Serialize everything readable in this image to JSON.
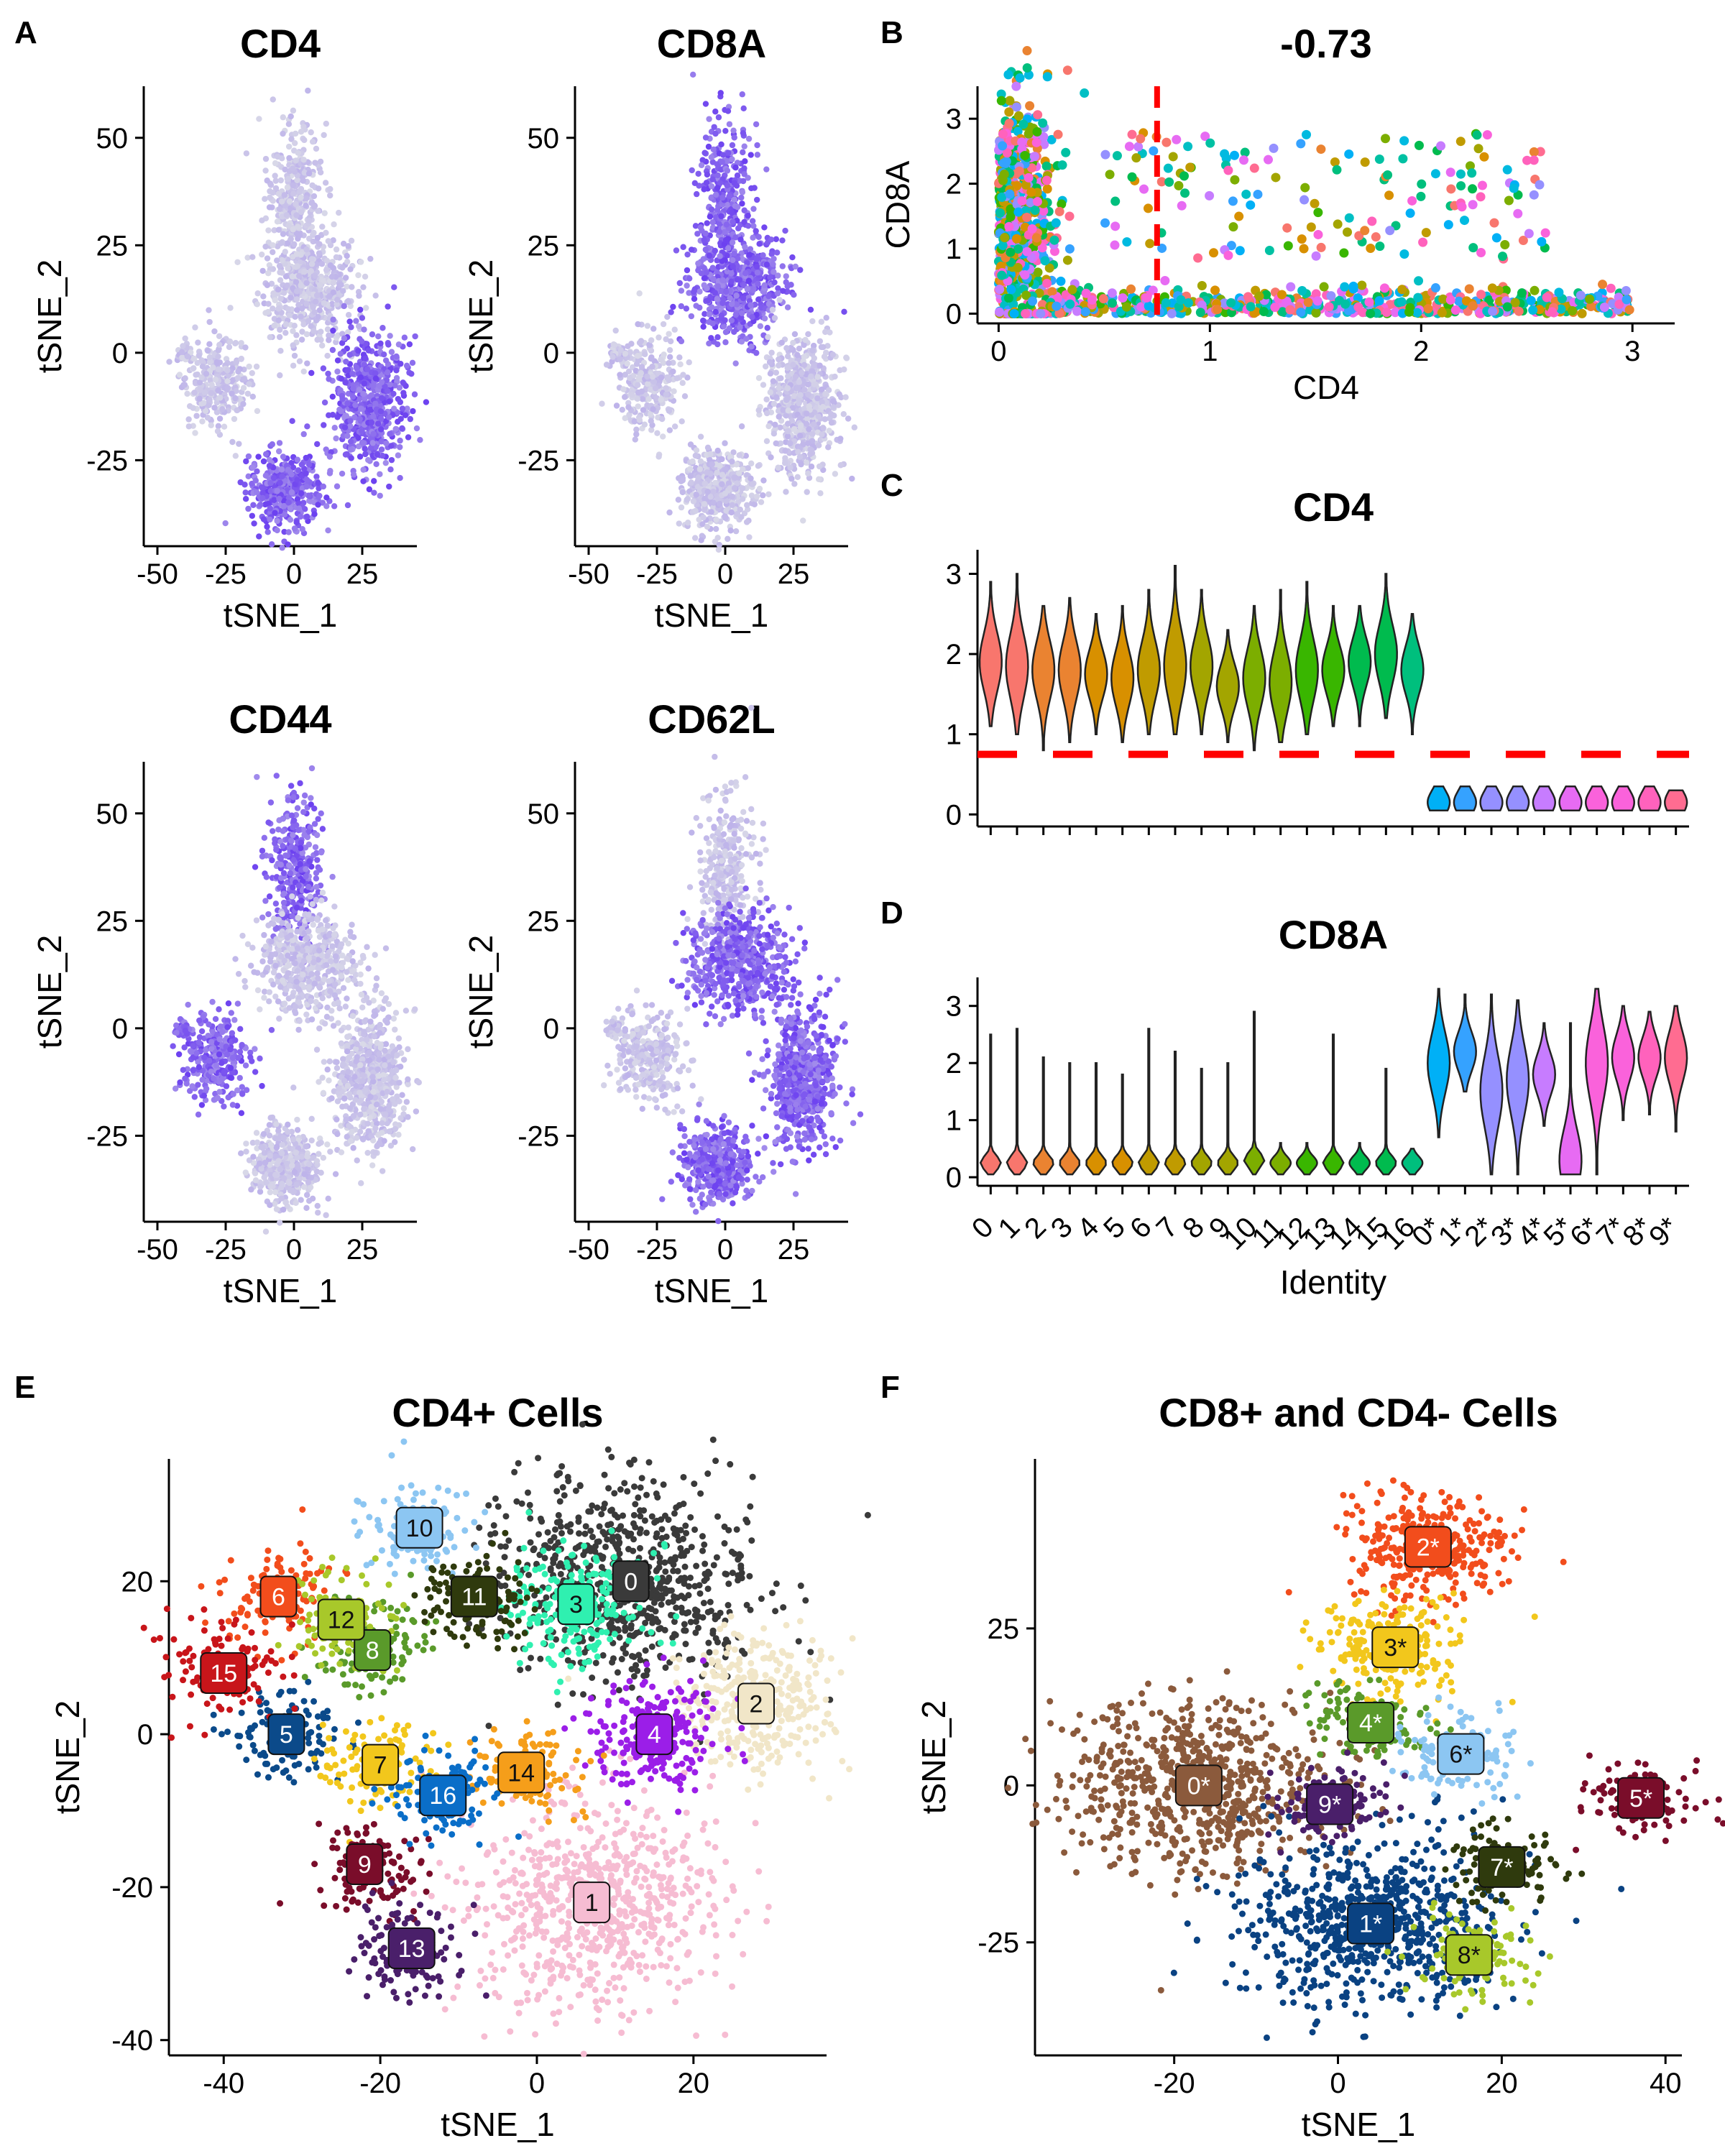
{
  "panel_letters": [
    "A",
    "B",
    "C",
    "D",
    "E",
    "F"
  ],
  "colors": {
    "feature_low": "#d9d9e8",
    "feature_high": "#6b3ff0",
    "threshold": "#ff0000",
    "cluster_palette": [
      "#f8766d",
      "#ea8331",
      "#d89000",
      "#c09b00",
      "#a3a500",
      "#7cae00",
      "#39b600",
      "#00bb4e",
      "#00bf7d",
      "#00c1a3",
      "#00bfc4",
      "#00bae0",
      "#00b0f6",
      "#35a2ff",
      "#9590ff",
      "#c77cff",
      "#e76bf3",
      "#fa62db",
      "#ff62bc",
      "#ff6c91"
    ]
  },
  "chart_data": [
    {
      "id": "A1",
      "type": "scatter",
      "title": "CD4",
      "xlabel": "tSNE_1",
      "ylabel": "tSNE_2",
      "xticks": [
        "-50",
        "-25",
        "0",
        "25"
      ],
      "yticks": [
        "50",
        "25",
        "0",
        "-25"
      ],
      "xlim": [
        -55,
        45
      ],
      "ylim": [
        -45,
        62
      ],
      "colormap": "expression",
      "highlight_regions": [
        "lower-right",
        "bottom"
      ],
      "grid": false
    },
    {
      "id": "A2",
      "type": "scatter",
      "title": "CD8A",
      "xlabel": "tSNE_1",
      "ylabel": "tSNE_2",
      "xticks": [
        "-50",
        "-25",
        "0",
        "25"
      ],
      "yticks": [
        "50",
        "25",
        "0",
        "-25"
      ],
      "xlim": [
        -55,
        45
      ],
      "ylim": [
        -45,
        62
      ],
      "colormap": "expression",
      "highlight_regions": [
        "upper",
        "top"
      ],
      "grid": false
    },
    {
      "id": "A3",
      "type": "scatter",
      "title": "CD44",
      "xlabel": "tSNE_1",
      "ylabel": "tSNE_2",
      "xticks": [
        "-50",
        "-25",
        "0",
        "25"
      ],
      "yticks": [
        "50",
        "25",
        "0",
        "-25"
      ],
      "xlim": [
        -55,
        45
      ],
      "ylim": [
        -45,
        62
      ],
      "colormap": "expression",
      "highlight_regions": [
        "left",
        "top"
      ],
      "grid": false
    },
    {
      "id": "A4",
      "type": "scatter",
      "title": "CD62L",
      "xlabel": "tSNE_1",
      "ylabel": "tSNE_2",
      "xticks": [
        "-50",
        "-25",
        "0",
        "25"
      ],
      "yticks": [
        "50",
        "25",
        "0",
        "-25"
      ],
      "xlim": [
        -55,
        45
      ],
      "ylim": [
        -45,
        62
      ],
      "colormap": "expression",
      "highlight_regions": [
        "upper",
        "lower-right",
        "bottom"
      ],
      "grid": false
    },
    {
      "id": "B",
      "type": "scatter",
      "title": "-0.73",
      "xlabel": "CD4",
      "ylabel": "CD8A",
      "xticks": [
        "0",
        "1",
        "2",
        "3"
      ],
      "yticks": [
        "0",
        "1",
        "2",
        "3"
      ],
      "xlim": [
        -0.1,
        3.2
      ],
      "ylim": [
        -0.15,
        3.5
      ],
      "threshold_x": 0.75,
      "grid": false
    },
    {
      "id": "C",
      "type": "violin",
      "title": "CD4",
      "ylabel": "",
      "yticks": [
        "0",
        "1",
        "2",
        "3"
      ],
      "ylim": [
        -0.15,
        3.3
      ],
      "threshold_y": 0.75,
      "categories": [
        "0",
        "1",
        "2",
        "3",
        "4",
        "5",
        "6",
        "7",
        "8",
        "9",
        "10",
        "11",
        "12",
        "13",
        "14",
        "15",
        "16",
        "0*",
        "1*",
        "2*",
        "3*",
        "4*",
        "5*",
        "6*",
        "7*",
        "8*",
        "9*"
      ],
      "medians": [
        1.9,
        1.85,
        1.8,
        1.8,
        1.75,
        1.7,
        1.8,
        1.85,
        1.85,
        1.6,
        1.7,
        1.65,
        1.8,
        1.8,
        1.9,
        2.0,
        1.8,
        0.15,
        0.15,
        0.15,
        0.15,
        0.15,
        0.15,
        0.15,
        0.15,
        0.15,
        0.15
      ],
      "maxes": [
        2.9,
        3.0,
        2.6,
        2.7,
        2.5,
        2.6,
        2.8,
        3.1,
        2.8,
        2.3,
        2.6,
        2.8,
        2.9,
        2.6,
        2.6,
        3.0,
        2.5,
        0.35,
        0.35,
        0.35,
        0.35,
        0.35,
        0.35,
        0.35,
        0.35,
        0.35,
        0.3
      ],
      "mins": [
        1.1,
        1.0,
        0.8,
        0.9,
        1.0,
        0.9,
        1.0,
        1.0,
        1.0,
        0.9,
        0.8,
        0.9,
        1.0,
        1.1,
        1.1,
        1.2,
        1.0,
        0.05,
        0.05,
        0.05,
        0.05,
        0.05,
        0.05,
        0.05,
        0.05,
        0.05,
        0.05
      ]
    },
    {
      "id": "D",
      "type": "violin",
      "title": "CD8A",
      "xlabel": "Identity",
      "yticks": [
        "0",
        "1",
        "2",
        "3"
      ],
      "ylim": [
        -0.15,
        3.5
      ],
      "categories": [
        "0",
        "1",
        "2",
        "3",
        "4",
        "5",
        "6",
        "7",
        "8",
        "9",
        "10",
        "11",
        "12",
        "13",
        "14",
        "15",
        "16",
        "0*",
        "1*",
        "2*",
        "3*",
        "4*",
        "5*",
        "6*",
        "7*",
        "8*",
        "9*"
      ],
      "medians": [
        0.25,
        0.25,
        0.25,
        0.25,
        0.25,
        0.25,
        0.25,
        0.25,
        0.25,
        0.25,
        0.3,
        0.25,
        0.25,
        0.25,
        0.25,
        0.25,
        0.25,
        2.0,
        2.2,
        1.5,
        1.7,
        1.8,
        0.3,
        2.0,
        2.1,
        2.1,
        2.1
      ],
      "maxes": [
        2.5,
        2.6,
        2.1,
        2.0,
        2.0,
        1.8,
        2.6,
        2.2,
        1.9,
        2.0,
        2.9,
        0.6,
        0.6,
        2.5,
        0.6,
        1.9,
        0.5,
        3.3,
        3.2,
        3.2,
        3.1,
        2.7,
        2.7,
        3.3,
        3.0,
        2.9,
        3.0
      ],
      "mins": [
        0.05,
        0.05,
        0.05,
        0.05,
        0.05,
        0.05,
        0.05,
        0.05,
        0.05,
        0.05,
        0.05,
        0.05,
        0.05,
        0.05,
        0.05,
        0.05,
        0.05,
        0.7,
        1.5,
        0.05,
        0.05,
        0.9,
        0.05,
        0.05,
        1.0,
        1.1,
        0.8
      ]
    },
    {
      "id": "E",
      "type": "scatter",
      "title": "CD4+ Cells",
      "xlabel": "tSNE_1",
      "ylabel": "tSNE_2",
      "xticks": [
        "-40",
        "-20",
        "0",
        "20"
      ],
      "yticks": [
        "20",
        "0",
        "-20",
        "-40"
      ],
      "xlim": [
        -47,
        37
      ],
      "ylim": [
        -42,
        36
      ],
      "clusters": [
        {
          "label": "0",
          "x": 12,
          "y": 20,
          "color": "#3a3a3a"
        },
        {
          "label": "1",
          "x": 7,
          "y": -22,
          "color": "#f6bcd2"
        },
        {
          "label": "2",
          "x": 28,
          "y": 4,
          "color": "#f1e6c8"
        },
        {
          "label": "3",
          "x": 5,
          "y": 17,
          "color": "#2ff0b0"
        },
        {
          "label": "4",
          "x": 15,
          "y": 0,
          "color": "#9b1ee8"
        },
        {
          "label": "5",
          "x": -32,
          "y": 0,
          "color": "#0b4a8a"
        },
        {
          "label": "6",
          "x": -33,
          "y": 18,
          "color": "#f24d1c"
        },
        {
          "label": "7",
          "x": -20,
          "y": -4,
          "color": "#f2c71c"
        },
        {
          "label": "8",
          "x": -21,
          "y": 11,
          "color": "#5a9a2a"
        },
        {
          "label": "9",
          "x": -22,
          "y": -17,
          "color": "#7a0d2a"
        },
        {
          "label": "10",
          "x": -15,
          "y": 27,
          "color": "#8cc6f2"
        },
        {
          "label": "11",
          "x": -8,
          "y": 18,
          "color": "#2f3a0d"
        },
        {
          "label": "12",
          "x": -25,
          "y": 15,
          "color": "#a8c82a"
        },
        {
          "label": "13",
          "x": -16,
          "y": -28,
          "color": "#4a1f6a"
        },
        {
          "label": "14",
          "x": -2,
          "y": -5,
          "color": "#f59e1a"
        },
        {
          "label": "15",
          "x": -40,
          "y": 8,
          "color": "#c8151a"
        },
        {
          "label": "16",
          "x": -12,
          "y": -8,
          "color": "#0a6ec8"
        }
      ]
    },
    {
      "id": "F",
      "type": "scatter",
      "title": "CD8+ and CD4- Cells",
      "xlabel": "tSNE_1",
      "ylabel": "tSNE_2",
      "xticks": [
        "-20",
        "0",
        "20",
        "40"
      ],
      "yticks": [
        "25",
        "0",
        "-25"
      ],
      "xlim": [
        -37,
        42
      ],
      "ylim": [
        -43,
        52
      ],
      "clusters": [
        {
          "label": "0*",
          "x": -17,
          "y": 0,
          "color": "#8b5a3c"
        },
        {
          "label": "1*",
          "x": 4,
          "y": -22,
          "color": "#0a4282"
        },
        {
          "label": "2*",
          "x": 11,
          "y": 38,
          "color": "#f24d1c"
        },
        {
          "label": "3*",
          "x": 7,
          "y": 22,
          "color": "#f2c71c"
        },
        {
          "label": "4*",
          "x": 4,
          "y": 10,
          "color": "#5a9a2a"
        },
        {
          "label": "5*",
          "x": 37,
          "y": -2,
          "color": "#7a0d2a"
        },
        {
          "label": "6*",
          "x": 15,
          "y": 5,
          "color": "#8cc6f2"
        },
        {
          "label": "7*",
          "x": 20,
          "y": -13,
          "color": "#2f3a0d"
        },
        {
          "label": "8*",
          "x": 16,
          "y": -27,
          "color": "#a8c82a"
        },
        {
          "label": "9*",
          "x": -1,
          "y": -3,
          "color": "#4a1f6a"
        }
      ]
    }
  ]
}
